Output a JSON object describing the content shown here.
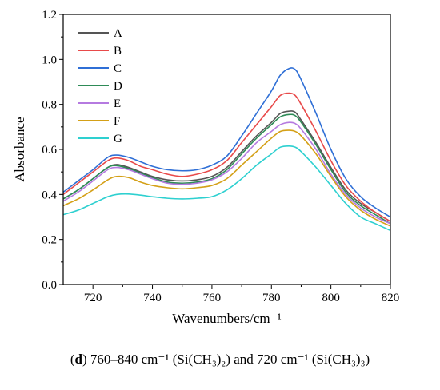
{
  "chart_data": {
    "type": "line",
    "title": "",
    "xlabel": "Wavenumbers/cm⁻¹",
    "ylabel": "Absorbance",
    "xlim": [
      710,
      820
    ],
    "ylim": [
      0.0,
      1.2
    ],
    "xticks": [
      720,
      740,
      760,
      780,
      800,
      820
    ],
    "yticks": [
      0.0,
      0.2,
      0.4,
      0.6,
      0.8,
      1.0,
      1.2
    ],
    "xtick_labels": [
      "720",
      "740",
      "760",
      "780",
      "800",
      "820"
    ],
    "ytick_labels": [
      "0.0",
      "0.2",
      "0.4",
      "0.6",
      "0.8",
      "1.0",
      "1.2"
    ],
    "legend_position": "top-left",
    "x": [
      710,
      715,
      720,
      725,
      728,
      732,
      736,
      740,
      745,
      750,
      755,
      760,
      765,
      770,
      775,
      780,
      783,
      786,
      788,
      790,
      795,
      800,
      805,
      810,
      815,
      820
    ],
    "series": [
      {
        "name": "A",
        "color": "#555555",
        "values": [
          0.38,
          0.42,
          0.47,
          0.52,
          0.533,
          0.52,
          0.5,
          0.48,
          0.465,
          0.46,
          0.465,
          0.48,
          0.52,
          0.59,
          0.66,
          0.72,
          0.76,
          0.77,
          0.765,
          0.73,
          0.63,
          0.52,
          0.42,
          0.36,
          0.32,
          0.28
        ]
      },
      {
        "name": "B",
        "color": "#e84a4a",
        "values": [
          0.4,
          0.45,
          0.5,
          0.55,
          0.562,
          0.55,
          0.525,
          0.51,
          0.49,
          0.48,
          0.49,
          0.51,
          0.55,
          0.63,
          0.71,
          0.79,
          0.84,
          0.85,
          0.84,
          0.8,
          0.68,
          0.55,
          0.44,
          0.37,
          0.32,
          0.28
        ]
      },
      {
        "name": "C",
        "color": "#2f6fd6",
        "values": [
          0.41,
          0.46,
          0.51,
          0.565,
          0.575,
          0.565,
          0.545,
          0.525,
          0.51,
          0.505,
          0.51,
          0.53,
          0.57,
          0.66,
          0.76,
          0.86,
          0.93,
          0.96,
          0.955,
          0.91,
          0.76,
          0.6,
          0.47,
          0.39,
          0.34,
          0.3
        ]
      },
      {
        "name": "D",
        "color": "#2e8b57",
        "values": [
          0.38,
          0.42,
          0.47,
          0.52,
          0.528,
          0.515,
          0.495,
          0.475,
          0.455,
          0.45,
          0.455,
          0.47,
          0.51,
          0.58,
          0.65,
          0.71,
          0.745,
          0.755,
          0.75,
          0.72,
          0.62,
          0.51,
          0.41,
          0.35,
          0.31,
          0.27
        ]
      },
      {
        "name": "E",
        "color": "#b57ae0",
        "values": [
          0.37,
          0.41,
          0.46,
          0.51,
          0.52,
          0.51,
          0.49,
          0.47,
          0.45,
          0.445,
          0.45,
          0.465,
          0.5,
          0.56,
          0.63,
          0.68,
          0.71,
          0.72,
          0.715,
          0.69,
          0.6,
          0.49,
          0.4,
          0.34,
          0.3,
          0.27
        ]
      },
      {
        "name": "F",
        "color": "#d4a017",
        "values": [
          0.35,
          0.38,
          0.42,
          0.465,
          0.48,
          0.475,
          0.455,
          0.44,
          0.43,
          0.425,
          0.43,
          0.44,
          0.47,
          0.53,
          0.59,
          0.65,
          0.68,
          0.685,
          0.68,
          0.66,
          0.58,
          0.48,
          0.39,
          0.33,
          0.29,
          0.26
        ]
      },
      {
        "name": "G",
        "color": "#2ed0d0",
        "values": [
          0.31,
          0.33,
          0.36,
          0.39,
          0.4,
          0.402,
          0.397,
          0.39,
          0.383,
          0.38,
          0.383,
          0.39,
          0.42,
          0.47,
          0.53,
          0.58,
          0.61,
          0.615,
          0.61,
          0.59,
          0.52,
          0.44,
          0.36,
          0.3,
          0.27,
          0.24
        ]
      }
    ]
  },
  "caption": {
    "label": "d",
    "text": " 760–840 cm⁻¹ (Si(CH₃)₂) and 720 cm⁻¹ (Si(CH₃)₃)"
  }
}
